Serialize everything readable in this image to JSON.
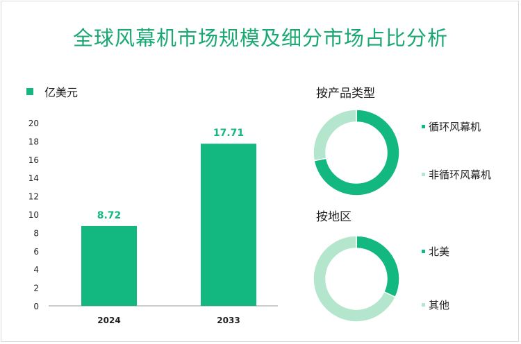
{
  "title": "全球风幕机市场规模及细分市场占比分析",
  "colors": {
    "primary": "#12b880",
    "secondary": "#b3e6cc",
    "title": "#1aa873"
  },
  "chart_data": [
    {
      "type": "bar",
      "unit_label": "亿美元",
      "categories": [
        "2024",
        "2033"
      ],
      "values": [
        8.72,
        17.71
      ],
      "value_labels": [
        "8.72",
        "17.71"
      ],
      "ylim": [
        0,
        20
      ],
      "yticks": [
        "0",
        "2",
        "4",
        "6",
        "8",
        "10",
        "12",
        "14",
        "16",
        "18",
        "20"
      ],
      "grid": false
    },
    {
      "type": "pie",
      "title": "按产品类型",
      "categories": [
        "循环风幕机",
        "非循环风幕机"
      ],
      "values": [
        72,
        28
      ]
    },
    {
      "type": "pie",
      "title": "按地区",
      "categories": [
        "北美",
        "其他"
      ],
      "values": [
        32,
        68
      ]
    }
  ]
}
